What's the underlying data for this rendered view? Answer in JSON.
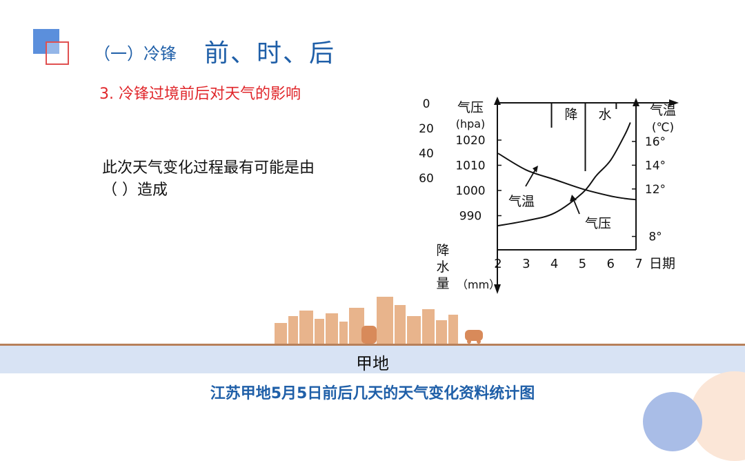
{
  "slide": {
    "title_prefix": "（一）冷锋",
    "title_main": "前、时、后",
    "subtitle": "3. 冷锋过境前后对天气的影响",
    "question_line1": "此次天气变化过程最有可能是由",
    "question_line2": "（        ）造成",
    "place": "甲地",
    "caption": "江苏甲地5月5日前后几天的天气变化资料统计图"
  },
  "colors": {
    "accent_blue": "#1f5fa8",
    "accent_red": "#e0262a",
    "band": "#d8e3f4",
    "city": "#e8b48c"
  },
  "chart_data": {
    "type": "line",
    "x_label": "日期",
    "x_ticks": [
      2,
      3,
      4,
      5,
      6,
      7
    ],
    "precip_axis": {
      "ticks": [
        0,
        20,
        40,
        60
      ],
      "label": "降水量",
      "unit": "（mm）"
    },
    "pressure_axis": {
      "ticks": [
        1020,
        1010,
        1000,
        990
      ],
      "label": "气压",
      "unit": "(hpa)"
    },
    "temp_axis": {
      "ticks": [
        "16°",
        "14°",
        "12°",
        "8°"
      ],
      "label": "气温",
      "unit": "(℃)"
    },
    "precip_labels": [
      "降",
      "水"
    ],
    "precip_bars": [
      {
        "x": 3.9,
        "value": 20
      },
      {
        "x": 5.1,
        "value": 55
      },
      {
        "x": 6.2,
        "value": 5
      }
    ],
    "series": [
      {
        "name": "气温",
        "points": [
          [
            2,
            15.0
          ],
          [
            3,
            13.6
          ],
          [
            4,
            12.8
          ],
          [
            5,
            12.0
          ],
          [
            6,
            11.4
          ],
          [
            6.5,
            11.2
          ],
          [
            6.9,
            11.1
          ]
        ]
      },
      {
        "name": "气压",
        "points": [
          [
            2,
            986
          ],
          [
            3,
            988
          ],
          [
            4,
            991
          ],
          [
            5,
            999
          ],
          [
            5.5,
            1006
          ],
          [
            6,
            1012
          ],
          [
            6.5,
            1022
          ],
          [
            6.7,
            1027
          ]
        ]
      }
    ]
  }
}
